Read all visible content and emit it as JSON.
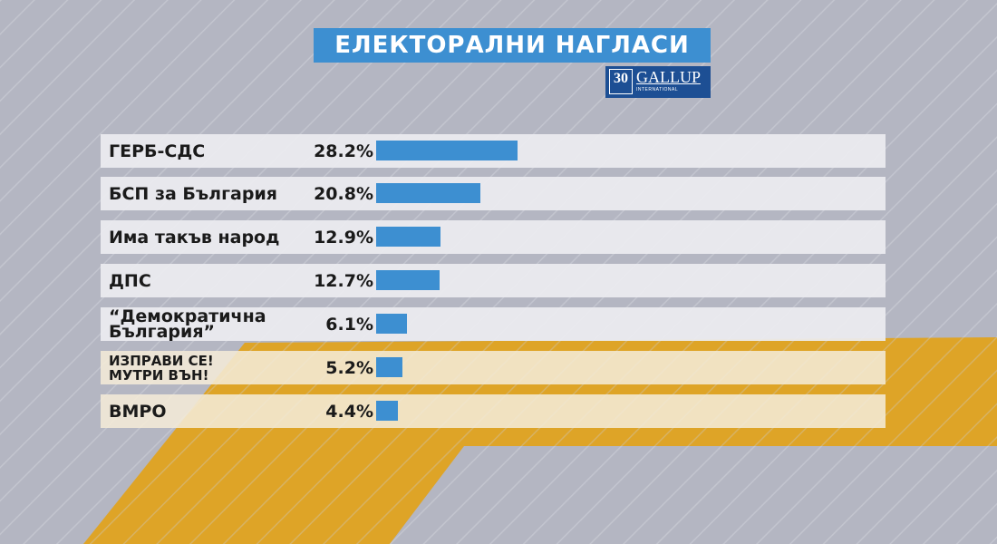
{
  "header": {
    "title": "ЕЛЕКТОРАЛНИ НАГЛАСИ",
    "logo": {
      "number": "30",
      "name": "GALLUP",
      "subtitle": "INTERNATIONAL"
    }
  },
  "colors": {
    "background": "#b4b6c2",
    "accent_blue": "#3d8fd1",
    "gold": "#dea427",
    "logo_blue": "#1d4f94"
  },
  "chart_data": {
    "type": "bar",
    "orientation": "horizontal",
    "title": "ЕЛЕКТОРАЛНИ НАГЛАСИ",
    "unit": "%",
    "categories": [
      "ГЕРБ-СДС",
      "БСП за България",
      "Има такъв народ",
      "ДПС",
      "“Демократична\nБългария”",
      "ИЗПРАВИ СЕ!\nМУТРИ ВЪН!",
      "ВМРО"
    ],
    "values": [
      28.2,
      20.8,
      12.9,
      12.7,
      6.1,
      5.2,
      4.4
    ],
    "value_labels": [
      "28.2%",
      "20.8%",
      "12.9%",
      "12.7%",
      "6.1%",
      "5.2%",
      "4.4%"
    ],
    "xlim": [
      0,
      100
    ],
    "grid": false,
    "legend": "none"
  }
}
